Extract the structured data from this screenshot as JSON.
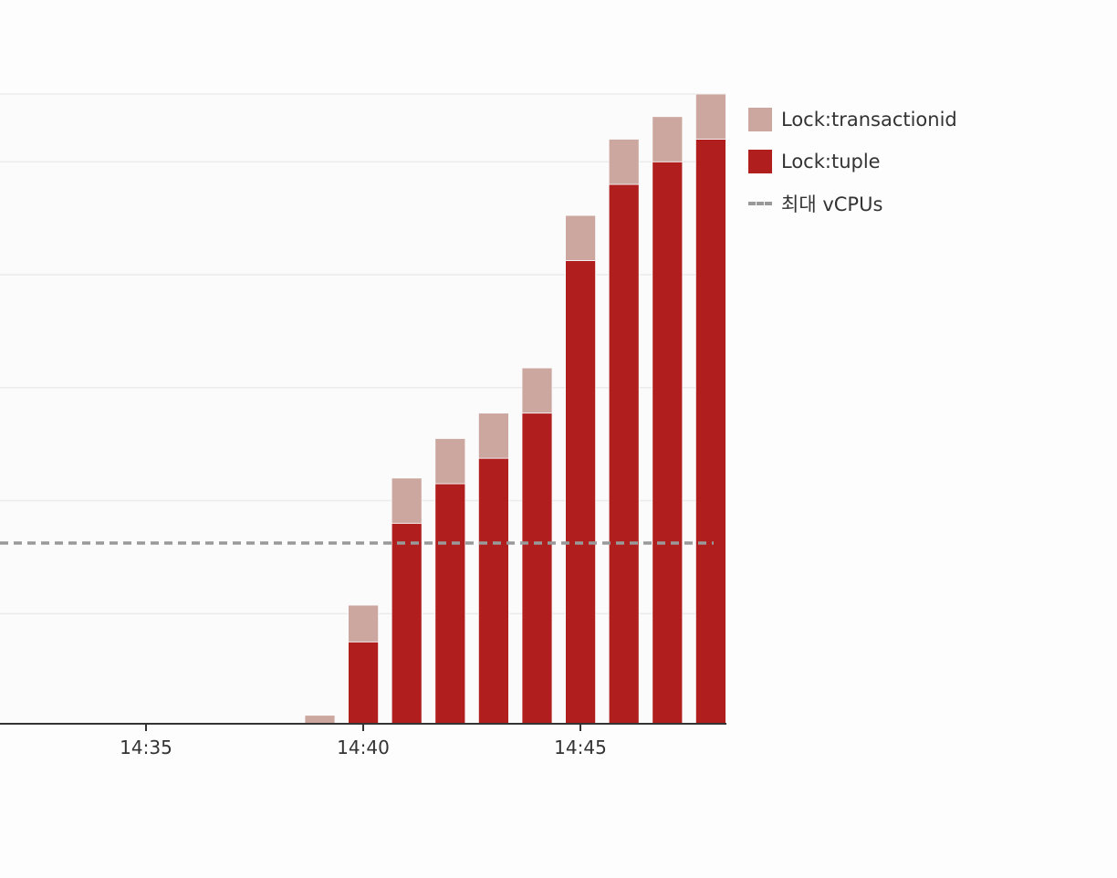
{
  "chart_data": {
    "type": "bar",
    "stacked": true,
    "x_tick_labels": [
      "14:35",
      "14:40",
      "14:45"
    ],
    "categories": [
      "14:39",
      "14:40",
      "14:41",
      "14:42",
      "14:43",
      "14:44",
      "14:45",
      "14:46",
      "14:47",
      "14:48"
    ],
    "series": [
      {
        "name": "Lock:tuple",
        "color": "#b01e1e",
        "values": [
          0,
          1.45,
          3.55,
          4.25,
          4.7,
          5.5,
          8.2,
          9.55,
          9.95,
          10.35
        ]
      },
      {
        "name": "Lock:transactionid",
        "color": "#cca7a0",
        "values": [
          0.15,
          0.65,
          0.8,
          0.8,
          0.8,
          0.8,
          0.8,
          0.8,
          0.8,
          0.8
        ]
      }
    ],
    "reference_line": {
      "name": "최대 vCPUs",
      "value": 3.2,
      "color": "#999999",
      "style": "dashed"
    },
    "ylim": [
      0,
      11.15
    ],
    "grid": true,
    "legend_position": "right",
    "title": "",
    "xlabel": "",
    "ylabel": ""
  },
  "legend": {
    "items": [
      {
        "label": "Lock:transactionid",
        "color": "#cca7a0"
      },
      {
        "label": "Lock:tuple",
        "color": "#b01e1e"
      },
      {
        "label": "최대 vCPUs",
        "color": "#999999"
      }
    ]
  }
}
